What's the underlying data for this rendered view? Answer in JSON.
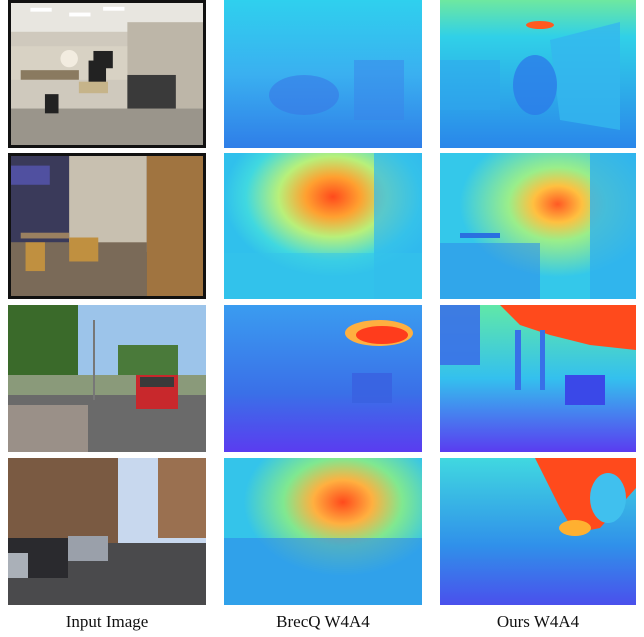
{
  "columns": [
    {
      "label": "Input Image"
    },
    {
      "label": "BrecQ W4A4"
    },
    {
      "label": "Ours W4A4"
    }
  ],
  "rows": [
    {
      "scene": "indoor-office-person-in-chair"
    },
    {
      "scene": "indoor-cafe-with-tables-and-chairs"
    },
    {
      "scene": "outdoor-street-red-car"
    },
    {
      "scene": "outdoor-city-street-with-parked-cars"
    }
  ],
  "colors": {
    "depth_far": "#ff4a1c",
    "depth_mid": "#28c8e8",
    "depth_near": "#5a3cf0",
    "frame_border": "#111111"
  }
}
